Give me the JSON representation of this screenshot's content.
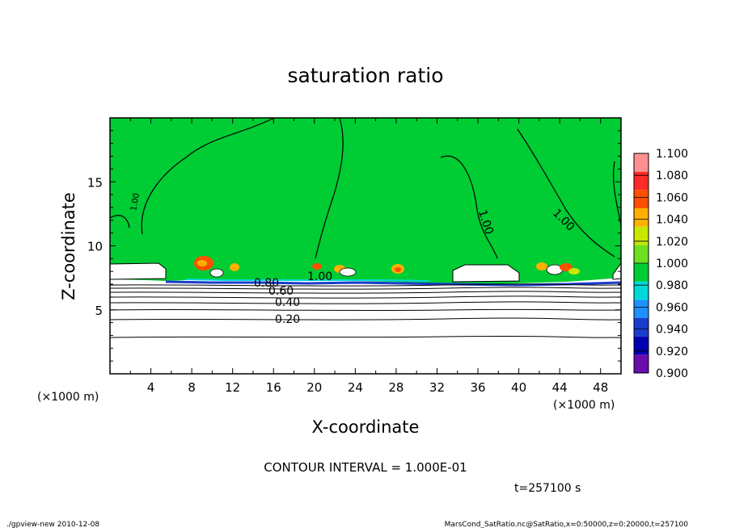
{
  "chart_data": {
    "type": "heatmap",
    "title": "saturation ratio",
    "xlabel": "X-coordinate",
    "ylabel": "Z-coordinate",
    "x_unit": "(×1000 m)",
    "y_unit": "(×1000 m)",
    "xlim": [
      0,
      50
    ],
    "ylim": [
      0,
      20
    ],
    "x_ticks": [
      "4",
      "8",
      "12",
      "16",
      "20",
      "24",
      "28",
      "32",
      "36",
      "40",
      "44",
      "48"
    ],
    "y_ticks": [
      "5",
      "10",
      "15"
    ],
    "colorbar": {
      "levels": [
        "0.900",
        "0.920",
        "0.940",
        "0.960",
        "0.980",
        "1.000",
        "1.020",
        "1.040",
        "1.060",
        "1.080",
        "1.100"
      ],
      "colors": [
        "#6a0dad",
        "#0000b0",
        "#1a3ccc",
        "#1e90ff",
        "#00d8d8",
        "#00cc33",
        "#6ee020",
        "#c8e800",
        "#ffb000",
        "#ff5000",
        "#ff2a2a",
        "#ff9090"
      ]
    },
    "contour_labels": [
      "0.20",
      "0.40",
      "0.60",
      "0.80",
      "1.00",
      "1.00",
      "1.00",
      "1.00"
    ],
    "contour_interval": "CONTOUR INTERVAL = 1.000E-01",
    "time": "t=257100 s",
    "footer_left": "./gpview-new   2010-12-08",
    "footer_right": "MarsCond_SatRatio.nc@SatRatio,x=0:50000,z=0:20000,t=257100"
  }
}
